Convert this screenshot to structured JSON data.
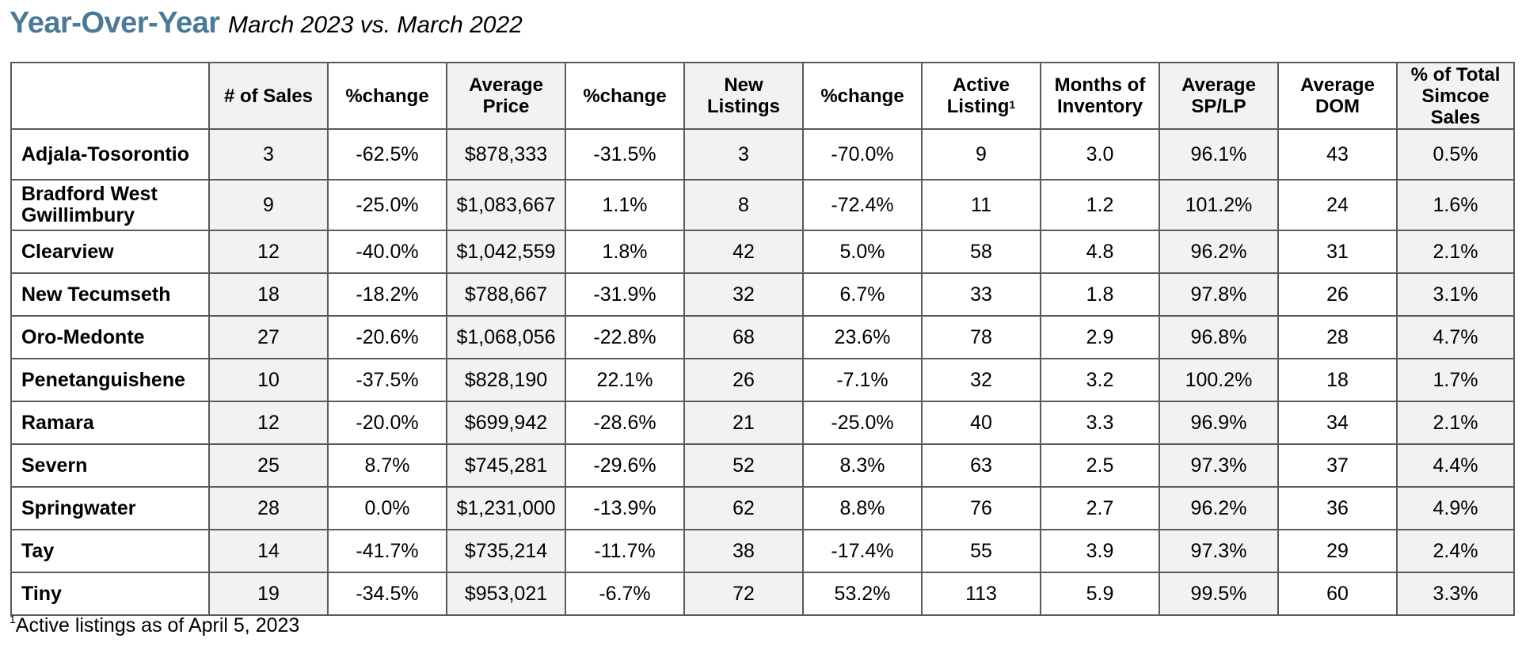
{
  "title": {
    "main": "Year-Over-Year",
    "subtitle": "March 2023 vs. March 2022"
  },
  "table": {
    "headers": [
      "",
      "# of Sales",
      "%change",
      "Average Price",
      "%change",
      "New Listings",
      "%change",
      "Active Listing",
      "Months of Inventory",
      "Average SP/LP",
      "Average DOM",
      "% of Total Simcoe Sales"
    ],
    "header_superscript": "1",
    "rows": [
      [
        "Adjala-Tosorontio",
        "3",
        "-62.5%",
        "$878,333",
        "-31.5%",
        "3",
        "-70.0%",
        "9",
        "3.0",
        "96.1%",
        "43",
        "0.5%"
      ],
      [
        "Bradford West Gwillimbury",
        "9",
        "-25.0%",
        "$1,083,667",
        "1.1%",
        "8",
        "-72.4%",
        "11",
        "1.2",
        "101.2%",
        "24",
        "1.6%"
      ],
      [
        "Clearview",
        "12",
        "-40.0%",
        "$1,042,559",
        "1.8%",
        "42",
        "5.0%",
        "58",
        "4.8",
        "96.2%",
        "31",
        "2.1%"
      ],
      [
        "New Tecumseth",
        "18",
        "-18.2%",
        "$788,667",
        "-31.9%",
        "32",
        "6.7%",
        "33",
        "1.8",
        "97.8%",
        "26",
        "3.1%"
      ],
      [
        "Oro-Medonte",
        "27",
        "-20.6%",
        "$1,068,056",
        "-22.8%",
        "68",
        "23.6%",
        "78",
        "2.9",
        "96.8%",
        "28",
        "4.7%"
      ],
      [
        "Penetanguishene",
        "10",
        "-37.5%",
        "$828,190",
        "22.1%",
        "26",
        "-7.1%",
        "32",
        "3.2",
        "100.2%",
        "18",
        "1.7%"
      ],
      [
        "Ramara",
        "12",
        "-20.0%",
        "$699,942",
        "-28.6%",
        "21",
        "-25.0%",
        "40",
        "3.3",
        "96.9%",
        "34",
        "2.1%"
      ],
      [
        "Severn",
        "25",
        "8.7%",
        "$745,281",
        "-29.6%",
        "52",
        "8.3%",
        "63",
        "2.5",
        "97.3%",
        "37",
        "4.4%"
      ],
      [
        "Springwater",
        "28",
        "0.0%",
        "$1,231,000",
        "-13.9%",
        "62",
        "8.8%",
        "76",
        "2.7",
        "96.2%",
        "36",
        "4.9%"
      ],
      [
        "Tay",
        "14",
        "-41.7%",
        "$735,214",
        "-11.7%",
        "38",
        "-17.4%",
        "55",
        "3.9",
        "97.3%",
        "29",
        "2.4%"
      ],
      [
        "Tiny",
        "19",
        "-34.5%",
        "$953,021",
        "-6.7%",
        "72",
        "53.2%",
        "113",
        "5.9",
        "99.5%",
        "60",
        "3.3%"
      ]
    ]
  },
  "footnote": {
    "marker": "1",
    "text": "Active listings as of April 5, 2023"
  },
  "colors": {
    "title": "#4a7a96",
    "shaded_column": "#f2f2f2",
    "border": "#5a5a5a"
  }
}
